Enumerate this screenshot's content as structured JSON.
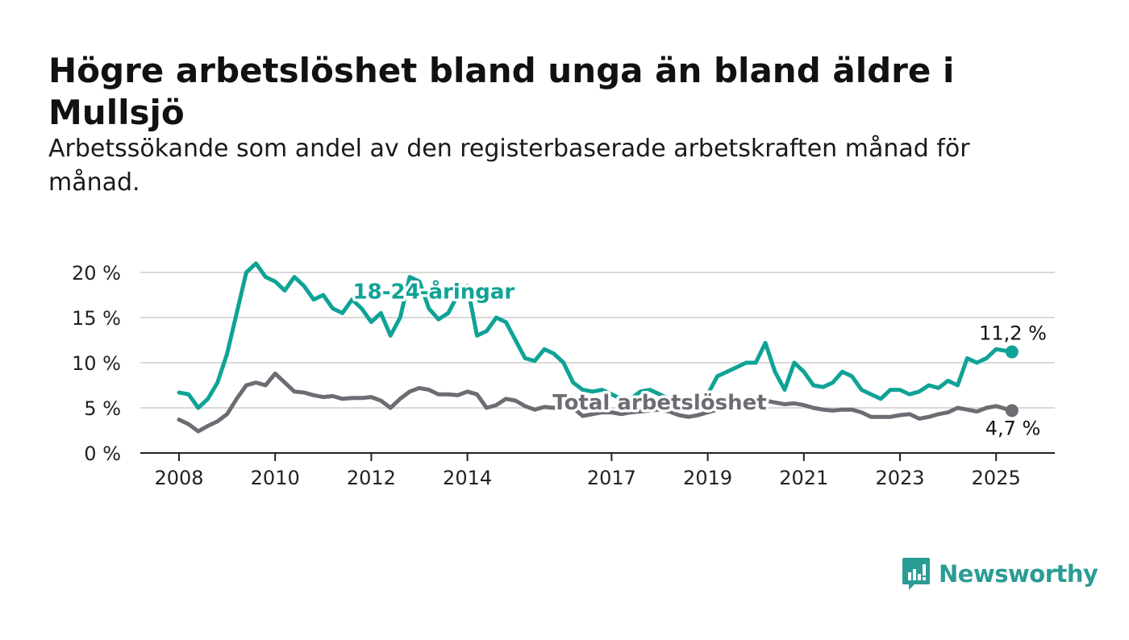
{
  "title": "Högre arbetslöshet bland unga än bland äldre i Mullsjö",
  "subtitle": "Arbetssökande som andel av den registerbaserade arbetskraften månad för månad.",
  "brand": {
    "name": "Newsworthy",
    "color": "#2a9c94"
  },
  "chart_data": {
    "type": "line",
    "title": "Högre arbetslöshet bland unga än bland äldre i Mullsjö",
    "subtitle": "Arbetssökande som andel av den registerbaserade arbetskraften månad för månad.",
    "xlim": [
      2008,
      2025.33
    ],
    "ylim": [
      0,
      20
    ],
    "grid": true,
    "y_ticks": [
      0,
      5,
      10,
      15,
      20
    ],
    "y_tick_labels": [
      "0 %",
      "5 %",
      "10 %",
      "15 %",
      "20 %"
    ],
    "x_ticks": [
      2008,
      2010,
      2012,
      2014,
      2017,
      2019,
      2021,
      2023,
      2025
    ],
    "x_tick_labels": [
      "2008",
      "2010",
      "2012",
      "2014",
      "2017",
      "2019",
      "2021",
      "2023",
      "2025"
    ],
    "series": [
      {
        "name": "18-24-åringar",
        "color": "#0fa396",
        "last_value_label": "11,2 %",
        "x": [
          2008.0,
          2008.2,
          2008.4,
          2008.6,
          2008.8,
          2009.0,
          2009.2,
          2009.4,
          2009.6,
          2009.8,
          2010.0,
          2010.2,
          2010.4,
          2010.6,
          2010.8,
          2011.0,
          2011.2,
          2011.4,
          2011.6,
          2011.8,
          2012.0,
          2012.2,
          2012.4,
          2012.6,
          2012.8,
          2013.0,
          2013.2,
          2013.4,
          2013.6,
          2013.8,
          2014.0,
          2014.2,
          2014.4,
          2014.6,
          2014.8,
          2015.0,
          2015.2,
          2015.4,
          2015.6,
          2015.8,
          2016.0,
          2016.2,
          2016.4,
          2016.6,
          2016.8,
          2017.0,
          2017.2,
          2017.4,
          2017.6,
          2017.8,
          2018.0,
          2018.2,
          2018.4,
          2018.6,
          2018.8,
          2019.0,
          2019.2,
          2019.4,
          2019.6,
          2019.8,
          2020.0,
          2020.2,
          2020.4,
          2020.6,
          2020.8,
          2021.0,
          2021.2,
          2021.4,
          2021.6,
          2021.8,
          2022.0,
          2022.2,
          2022.4,
          2022.6,
          2022.8,
          2023.0,
          2023.2,
          2023.4,
          2023.6,
          2023.8,
          2024.0,
          2024.2,
          2024.4,
          2024.6,
          2024.8,
          2025.0,
          2025.33
        ],
        "values": [
          6.7,
          6.5,
          5.0,
          6.0,
          7.8,
          11.0,
          15.5,
          20.0,
          21.0,
          19.5,
          19.0,
          18.0,
          19.5,
          18.5,
          17.0,
          17.5,
          16.0,
          15.5,
          17.0,
          16.0,
          14.5,
          15.5,
          13.0,
          15.0,
          19.5,
          19.0,
          16.0,
          14.8,
          15.5,
          17.5,
          18.5,
          13.0,
          13.5,
          15.0,
          14.5,
          12.5,
          10.5,
          10.2,
          11.5,
          11.0,
          10.0,
          7.8,
          7.0,
          6.8,
          7.0,
          6.5,
          6.0,
          6.0,
          6.8,
          7.0,
          6.5,
          6.0,
          5.8,
          6.0,
          5.5,
          6.5,
          8.5,
          9.0,
          9.5,
          10.0,
          10.0,
          12.2,
          9.0,
          7.0,
          10.0,
          9.0,
          7.5,
          7.3,
          7.8,
          9.0,
          8.5,
          7.0,
          6.5,
          6.0,
          7.0,
          7.0,
          6.5,
          6.8,
          7.5,
          7.2,
          8.0,
          7.5,
          10.5,
          10.0,
          10.5,
          11.5,
          11.2
        ]
      },
      {
        "name": "Total arbetslöshet",
        "color": "#6e6c73",
        "last_value_label": "4,7 %",
        "x": [
          2008.0,
          2008.2,
          2008.4,
          2008.6,
          2008.8,
          2009.0,
          2009.2,
          2009.4,
          2009.6,
          2009.8,
          2010.0,
          2010.2,
          2010.4,
          2010.6,
          2010.8,
          2011.0,
          2011.2,
          2011.4,
          2011.6,
          2011.8,
          2012.0,
          2012.2,
          2012.4,
          2012.6,
          2012.8,
          2013.0,
          2013.2,
          2013.4,
          2013.6,
          2013.8,
          2014.0,
          2014.2,
          2014.4,
          2014.6,
          2014.8,
          2015.0,
          2015.2,
          2015.4,
          2015.6,
          2015.8,
          2016.0,
          2016.2,
          2016.4,
          2016.6,
          2016.8,
          2017.0,
          2017.2,
          2017.4,
          2017.6,
          2017.8,
          2018.0,
          2018.2,
          2018.4,
          2018.6,
          2018.8,
          2019.0,
          2019.2,
          2019.4,
          2019.6,
          2019.8,
          2020.0,
          2020.2,
          2020.4,
          2020.6,
          2020.8,
          2021.0,
          2021.2,
          2021.4,
          2021.6,
          2021.8,
          2022.0,
          2022.2,
          2022.4,
          2022.6,
          2022.8,
          2023.0,
          2023.2,
          2023.4,
          2023.6,
          2023.8,
          2024.0,
          2024.2,
          2024.4,
          2024.6,
          2024.8,
          2025.0,
          2025.33
        ],
        "values": [
          3.7,
          3.2,
          2.4,
          3.0,
          3.5,
          4.3,
          6.0,
          7.5,
          7.8,
          7.5,
          8.8,
          7.8,
          6.8,
          6.7,
          6.4,
          6.2,
          6.3,
          6.0,
          6.1,
          6.1,
          6.2,
          5.8,
          5.0,
          6.0,
          6.8,
          7.2,
          7.0,
          6.5,
          6.5,
          6.4,
          6.8,
          6.5,
          5.0,
          5.3,
          6.0,
          5.8,
          5.2,
          4.8,
          5.1,
          5.0,
          5.2,
          5.0,
          4.1,
          4.3,
          4.5,
          4.5,
          4.3,
          4.5,
          4.6,
          4.7,
          4.8,
          4.6,
          4.2,
          4.0,
          4.2,
          4.5,
          4.8,
          5.0,
          5.2,
          5.5,
          5.8,
          5.8,
          5.6,
          5.4,
          5.5,
          5.3,
          5.0,
          4.8,
          4.7,
          4.8,
          4.8,
          4.5,
          4.0,
          4.0,
          4.0,
          4.2,
          4.3,
          3.8,
          4.0,
          4.3,
          4.5,
          5.0,
          4.8,
          4.6,
          5.0,
          5.2,
          4.7
        ]
      }
    ],
    "annotations": [
      {
        "text": "18-24-åringar",
        "series": "18-24-åringar",
        "x": 2013.3,
        "y": 17.1
      },
      {
        "text": "Total arbetslöshet",
        "series": "Total arbetslöshet",
        "x": 2018.0,
        "y": 4.8
      }
    ]
  }
}
